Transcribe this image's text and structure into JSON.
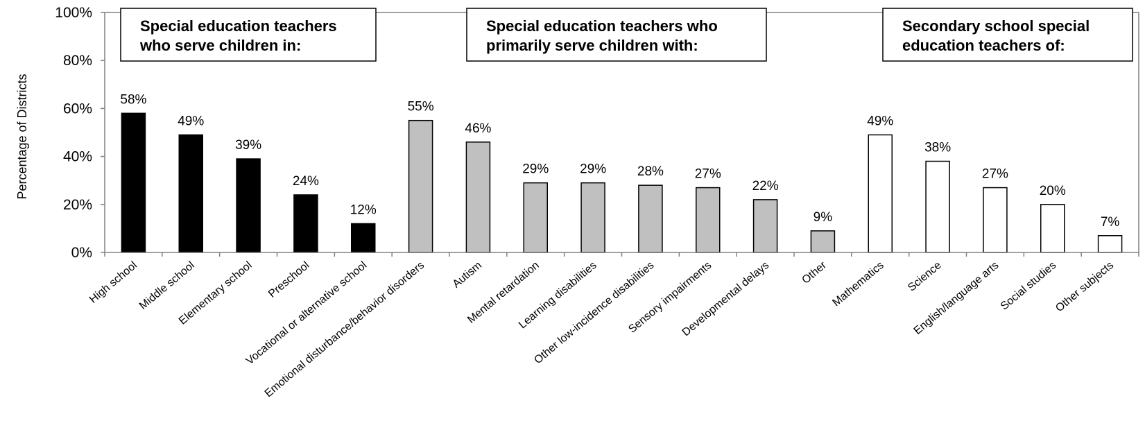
{
  "chart_data": {
    "type": "bar",
    "ylabel": "Percentage of Districts",
    "ylim": [
      0,
      100
    ],
    "yticks": [
      "0%",
      "20%",
      "40%",
      "60%",
      "80%",
      "100%"
    ],
    "grid": false,
    "categories": [
      "High school",
      "Middle school",
      "Elementary school",
      "Preschool",
      "Vocational or alternative school",
      "Emotional disturbance/behavior disorders",
      "Autism",
      "Mental retardation",
      "Learning disabilities",
      "Other low-incidence disabilities",
      "Sensory impairments",
      "Developmental delays",
      "Other",
      "Mathematics",
      "Science",
      "English/language arts",
      "Social studies",
      "Other subjects"
    ],
    "values": [
      58,
      49,
      39,
      24,
      12,
      55,
      46,
      29,
      29,
      28,
      27,
      22,
      9,
      49,
      38,
      27,
      20,
      7
    ],
    "value_labels": [
      "58%",
      "49%",
      "39%",
      "24%",
      "12%",
      "55%",
      "46%",
      "29%",
      "29%",
      "28%",
      "27%",
      "22%",
      "9%",
      "49%",
      "38%",
      "27%",
      "20%",
      "7%"
    ],
    "groups": [
      {
        "title_lines": [
          "Special education teachers",
          "who serve children in:"
        ],
        "start": 0,
        "end": 4,
        "fill": "#000000"
      },
      {
        "title_lines": [
          "Special education teachers who",
          "primarily serve children with:"
        ],
        "start": 5,
        "end": 12,
        "fill": "#c0c0c0"
      },
      {
        "title_lines": [
          "Secondary school special",
          "education teachers of:"
        ],
        "start": 13,
        "end": 17,
        "fill": "#ffffff"
      }
    ]
  }
}
